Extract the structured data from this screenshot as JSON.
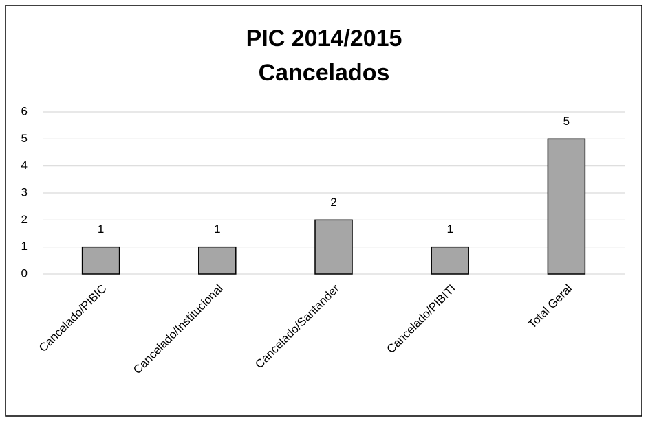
{
  "chart_data": {
    "type": "bar",
    "title": "PIC 2014/2015",
    "subtitle": "Cancelados",
    "categories": [
      "Cancelado/PIBIC",
      "Cancelado/Institucional",
      "Cancelado/Santander",
      "Cancelado/PIBITI",
      "Total Geral"
    ],
    "values": [
      1,
      1,
      2,
      1,
      5
    ],
    "color": "#a6a6a6",
    "ylim": [
      0,
      6
    ],
    "yticks": [
      0,
      1,
      2,
      3,
      4,
      5,
      6
    ],
    "grid": true
  }
}
